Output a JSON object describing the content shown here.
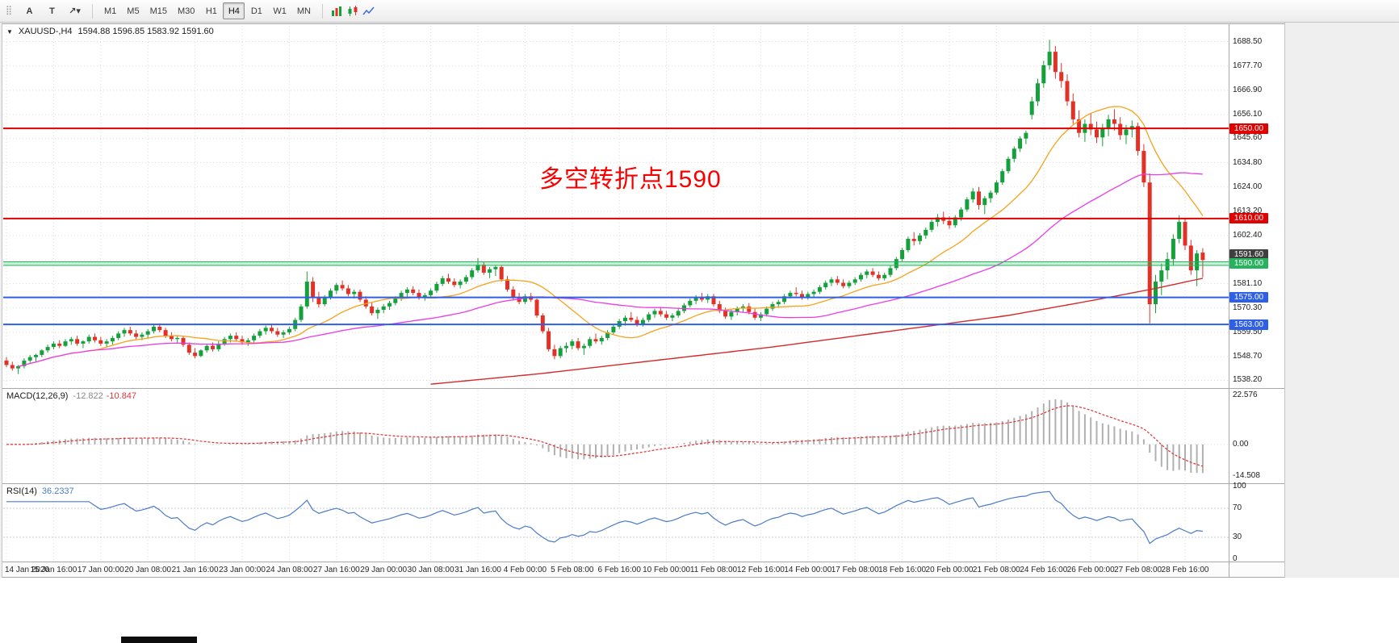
{
  "window": {
    "bg": "#efefef"
  },
  "toolbar": {
    "grip_glyph": "⣿",
    "left_buttons": [
      {
        "name": "a-tool-button",
        "label": "A"
      },
      {
        "name": "t-tool-button",
        "label": "T"
      },
      {
        "name": "crosshair-dropdown-button",
        "label": "↗▾"
      }
    ],
    "timeframes": [
      "M1",
      "M5",
      "M15",
      "M30",
      "H1",
      "H4",
      "D1",
      "W1",
      "MN"
    ],
    "active_timeframe": "H4",
    "right_icons": [
      {
        "name": "bar-chart-type-icon"
      },
      {
        "name": "candlestick-chart-type-icon"
      },
      {
        "name": "line-chart-type-icon"
      }
    ]
  },
  "chart": {
    "collapse_glyph": "▼",
    "symbol_label": "XAUUSD-,H4",
    "ohlc_text": "1594.88 1596.85 1583.92 1591.60",
    "annotation": {
      "text": "多空转折点1590",
      "color": "#fb0000"
    },
    "price_axis": [
      "1688.50",
      "1677.70",
      "1666.90",
      "1656.10",
      "1645.60",
      "1634.80",
      "1624.00",
      "1613.20",
      "1602.40",
      "1591.60",
      "1581.10",
      "1570.30",
      "1559.50",
      "1548.70",
      "1538.20"
    ],
    "levels": [
      {
        "price": 1650.0,
        "label": "1650.00",
        "color": "#e00000"
      },
      {
        "price": 1610.0,
        "label": "1610.00",
        "color": "#e00000"
      },
      {
        "price": 1590.0,
        "label": "1590.00",
        "color": "#27b35e",
        "style": "band"
      },
      {
        "price": 1575.0,
        "label": "1575.00",
        "color": "#2e5fe8"
      },
      {
        "price": 1563.0,
        "label": "1563.00",
        "color": "#2e5fe8"
      }
    ],
    "current_price": {
      "value": 1591.6,
      "label": "1591.60",
      "color": "#3f3f3f"
    }
  },
  "macd": {
    "name": "MACD(12,26,9)",
    "value_main": "-12.822",
    "value_signal": "-10.847",
    "axis_labels": [
      "22.576",
      "0.00",
      "-14.508"
    ]
  },
  "rsi": {
    "name": "RSI(14)",
    "value": "36.2337",
    "axis_labels": [
      "100",
      "70",
      "30",
      "0"
    ],
    "levels": [
      70,
      30
    ]
  },
  "colors": {
    "candle_up": "#15a03c",
    "candle_down": "#e23227",
    "ma_fast": "#f7a21b",
    "ma_medium": "#e93ce9",
    "ma_slow": "#d32a2a",
    "macd_hist": "#b0b0b0",
    "macd_signal": "#e03030",
    "rsi_line": "#4a7bc9"
  },
  "chart_data": {
    "type": "candlestick",
    "symbol": "XAUUSD",
    "timeframe": "H4",
    "grid_step": 8,
    "y_range": [
      1535.5,
      1695.5
    ],
    "ohlc_current": [
      1594.88,
      1596.85,
      1583.92,
      1591.6
    ],
    "indicators": {
      "macd": {
        "params": "12,26,9",
        "last_main": -12.822,
        "last_signal": -10.847,
        "axis": [
          22.576,
          0,
          -14.508
        ]
      },
      "rsi": {
        "period": 14,
        "last": 36.2337,
        "levels": [
          70,
          30
        ],
        "axis": [
          100,
          70,
          30,
          0
        ]
      }
    },
    "horizontal_levels": [
      1650.0,
      1610.0,
      1590.0,
      1575.0,
      1563.0
    ],
    "ma_slow_keypoints": [
      [
        72,
        1536.5
      ],
      [
        90,
        1541
      ],
      [
        110,
        1547
      ],
      [
        130,
        1553
      ],
      [
        150,
        1560
      ],
      [
        170,
        1567
      ],
      [
        185,
        1574
      ],
      [
        195,
        1579
      ],
      [
        203,
        1583.5
      ]
    ],
    "x_labels": [
      "14 Jan 2020",
      "15 Jan 16:00",
      "17 Jan 00:00",
      "20 Jan 08:00",
      "21 Jan 16:00",
      "23 Jan 00:00",
      "24 Jan 08:00",
      "27 Jan 16:00",
      "29 Jan 00:00",
      "30 Jan 08:00",
      "31 Jan 16:00",
      "4 Feb 00:00",
      "5 Feb 08:00",
      "6 Feb 16:00",
      "10 Feb 00:00",
      "11 Feb 08:00",
      "12 Feb 16:00",
      "14 Feb 00:00",
      "17 Feb 08:00",
      "18 Feb 16:00",
      "20 Feb 00:00",
      "21 Feb 08:00",
      "24 Feb 16:00",
      "26 Feb 00:00",
      "27 Feb 08:00",
      "28 Feb 16:00"
    ],
    "candles": [
      [
        1547,
        1548.5,
        1544,
        1545
      ],
      [
        1545,
        1546.5,
        1542.5,
        1543.5
      ],
      [
        1543.5,
        1545,
        1541,
        1544.5
      ],
      [
        1544.5,
        1548,
        1543.5,
        1547
      ],
      [
        1547,
        1549.5,
        1546,
        1548.5
      ],
      [
        1548.5,
        1550,
        1546.5,
        1549.5
      ],
      [
        1549.5,
        1552,
        1548.5,
        1551.5
      ],
      [
        1551.5,
        1554,
        1550.5,
        1553
      ],
      [
        1553,
        1555.5,
        1552,
        1554.5
      ],
      [
        1554.5,
        1556,
        1552.5,
        1553.5
      ],
      [
        1553.5,
        1556.5,
        1553,
        1555.5
      ],
      [
        1555.5,
        1557.5,
        1554,
        1556.5
      ],
      [
        1556.5,
        1558,
        1553.5,
        1554.5
      ],
      [
        1554.5,
        1556,
        1552.5,
        1555.5
      ],
      [
        1555.5,
        1558.5,
        1554.5,
        1557.5
      ],
      [
        1557.5,
        1559,
        1555,
        1556
      ],
      [
        1556,
        1557.5,
        1553.5,
        1554.5
      ],
      [
        1554.5,
        1556.5,
        1553,
        1555.5
      ],
      [
        1555.5,
        1558,
        1554,
        1557
      ],
      [
        1557,
        1560,
        1556,
        1559
      ],
      [
        1559,
        1561.5,
        1557.5,
        1560.5
      ],
      [
        1560.5,
        1562,
        1558,
        1559
      ],
      [
        1559,
        1560.5,
        1556.5,
        1557.5
      ],
      [
        1557.5,
        1559.5,
        1556,
        1558.5
      ],
      [
        1558.5,
        1561,
        1557,
        1560
      ],
      [
        1560,
        1563,
        1559,
        1562
      ],
      [
        1562,
        1563.5,
        1559.5,
        1560.5
      ],
      [
        1560.5,
        1561.5,
        1557,
        1558
      ],
      [
        1558,
        1559.5,
        1555.5,
        1556.5
      ],
      [
        1556.5,
        1558,
        1554.5,
        1557
      ],
      [
        1557,
        1558,
        1553,
        1554
      ],
      [
        1554,
        1555,
        1549.5,
        1550.5
      ],
      [
        1550.5,
        1552.5,
        1548,
        1549
      ],
      [
        1549,
        1552,
        1548.5,
        1551.5
      ],
      [
        1551.5,
        1554.5,
        1550.5,
        1553.5
      ],
      [
        1553.5,
        1555,
        1551,
        1552
      ],
      [
        1552,
        1555.5,
        1551,
        1554.5
      ],
      [
        1554.5,
        1557.5,
        1553.5,
        1556.5
      ],
      [
        1556.5,
        1559,
        1555,
        1558
      ],
      [
        1558,
        1559.5,
        1555.5,
        1556.5
      ],
      [
        1556.5,
        1558,
        1554,
        1555
      ],
      [
        1555,
        1557,
        1553.5,
        1556
      ],
      [
        1556,
        1559,
        1555,
        1558
      ],
      [
        1558,
        1561,
        1557,
        1560
      ],
      [
        1560,
        1562.5,
        1558.5,
        1561.5
      ],
      [
        1561.5,
        1563,
        1559,
        1560
      ],
      [
        1560,
        1561.5,
        1557.5,
        1558.5
      ],
      [
        1558.5,
        1560.5,
        1557,
        1559.5
      ],
      [
        1559.5,
        1562,
        1558.5,
        1561
      ],
      [
        1561,
        1566,
        1560,
        1565
      ],
      [
        1565,
        1572,
        1564,
        1571
      ],
      [
        1571,
        1586.5,
        1570,
        1582
      ],
      [
        1582,
        1584,
        1573,
        1575
      ],
      [
        1575,
        1577.5,
        1570.5,
        1572
      ],
      [
        1572,
        1576,
        1571,
        1575
      ],
      [
        1575,
        1579,
        1574,
        1578
      ],
      [
        1578,
        1581.5,
        1576.5,
        1580.5
      ],
      [
        1580.5,
        1582.5,
        1578,
        1579
      ],
      [
        1579,
        1580.5,
        1575.5,
        1576.5
      ],
      [
        1576.5,
        1578.5,
        1574.5,
        1577.5
      ],
      [
        1577.5,
        1578.5,
        1573,
        1574
      ],
      [
        1574,
        1575.5,
        1570,
        1571
      ],
      [
        1571,
        1572.5,
        1567,
        1568
      ],
      [
        1568,
        1570.5,
        1565.5,
        1569.5
      ],
      [
        1569.5,
        1572,
        1568,
        1571
      ],
      [
        1571,
        1573.5,
        1569.5,
        1572.5
      ],
      [
        1572.5,
        1575.5,
        1571.5,
        1574.5
      ],
      [
        1574.5,
        1578,
        1573.5,
        1577
      ],
      [
        1577,
        1579.5,
        1575,
        1578.5
      ],
      [
        1578.5,
        1580,
        1576,
        1577
      ],
      [
        1577,
        1578.5,
        1574,
        1575
      ],
      [
        1575,
        1577,
        1573.5,
        1576
      ],
      [
        1576,
        1579,
        1575,
        1578
      ],
      [
        1578,
        1582,
        1577,
        1581
      ],
      [
        1581,
        1584.5,
        1580,
        1583.5
      ],
      [
        1583.5,
        1585.5,
        1581,
        1582
      ],
      [
        1582,
        1583.5,
        1579.5,
        1580.5
      ],
      [
        1580.5,
        1583,
        1579,
        1582
      ],
      [
        1582,
        1585,
        1581,
        1584
      ],
      [
        1584,
        1588,
        1583,
        1587
      ],
      [
        1587,
        1592.5,
        1586,
        1589.5
      ],
      [
        1589.5,
        1591,
        1585,
        1586
      ],
      [
        1586,
        1588.5,
        1583.5,
        1587.5
      ],
      [
        1587.5,
        1589,
        1584.5,
        1588.5
      ],
      [
        1588.5,
        1589,
        1582,
        1583
      ],
      [
        1583,
        1584.5,
        1577.5,
        1578.5
      ],
      [
        1578.5,
        1580,
        1574,
        1575
      ],
      [
        1575,
        1577,
        1572,
        1573
      ],
      [
        1573,
        1576.5,
        1572,
        1575.5
      ],
      [
        1575.5,
        1577,
        1573,
        1574
      ],
      [
        1574,
        1574.5,
        1566,
        1567
      ],
      [
        1567,
        1568,
        1559,
        1560
      ],
      [
        1560,
        1561.5,
        1551,
        1552
      ],
      [
        1552,
        1554,
        1547.5,
        1549
      ],
      [
        1549,
        1553.5,
        1548,
        1552.5
      ],
      [
        1552.5,
        1555,
        1550.5,
        1553.5
      ],
      [
        1553.5,
        1556.5,
        1552,
        1555.5
      ],
      [
        1555.5,
        1557,
        1551.5,
        1552.5
      ],
      [
        1552.5,
        1554.5,
        1549.5,
        1553.5
      ],
      [
        1553.5,
        1557.5,
        1552.5,
        1556.5
      ],
      [
        1556.5,
        1559,
        1554.5,
        1555.5
      ],
      [
        1555.5,
        1558,
        1554,
        1557
      ],
      [
        1557,
        1560.5,
        1556,
        1559.5
      ],
      [
        1559.5,
        1563,
        1558.5,
        1562
      ],
      [
        1562,
        1565.5,
        1561,
        1564.5
      ],
      [
        1564.5,
        1567,
        1562.5,
        1566
      ],
      [
        1566,
        1568.5,
        1564,
        1565
      ],
      [
        1565,
        1566.5,
        1562,
        1563
      ],
      [
        1563,
        1566,
        1562,
        1565
      ],
      [
        1565,
        1568.5,
        1564,
        1567.5
      ],
      [
        1567.5,
        1570,
        1566,
        1569
      ],
      [
        1569,
        1570.5,
        1566.5,
        1567.5
      ],
      [
        1567.5,
        1569,
        1565,
        1566
      ],
      [
        1566,
        1568,
        1564.5,
        1567
      ],
      [
        1567,
        1570,
        1566,
        1569
      ],
      [
        1569,
        1572.5,
        1568,
        1571.5
      ],
      [
        1571.5,
        1574.5,
        1570.5,
        1573.5
      ],
      [
        1573.5,
        1576,
        1572,
        1575
      ],
      [
        1575,
        1577,
        1573,
        1574
      ],
      [
        1574,
        1576.5,
        1572.5,
        1575.5
      ],
      [
        1575.5,
        1576.5,
        1571,
        1572
      ],
      [
        1572,
        1573.5,
        1568,
        1569
      ],
      [
        1569,
        1570.5,
        1565.5,
        1566.5
      ],
      [
        1566.5,
        1569.5,
        1565,
        1568.5
      ],
      [
        1568.5,
        1571,
        1567,
        1570
      ],
      [
        1570,
        1572,
        1568.5,
        1571
      ],
      [
        1571,
        1572.5,
        1567.5,
        1568.5
      ],
      [
        1568.5,
        1570,
        1565,
        1566
      ],
      [
        1566,
        1568.5,
        1564.5,
        1567.5
      ],
      [
        1567.5,
        1571,
        1566.5,
        1570
      ],
      [
        1570,
        1573,
        1569,
        1572
      ],
      [
        1572,
        1574,
        1570.5,
        1573
      ],
      [
        1573,
        1576.5,
        1572,
        1575.5
      ],
      [
        1575.5,
        1578,
        1574.5,
        1577
      ],
      [
        1577,
        1579.5,
        1575.5,
        1576.5
      ],
      [
        1576.5,
        1578,
        1574,
        1575
      ],
      [
        1575,
        1577.5,
        1574,
        1576.5
      ],
      [
        1576.5,
        1578.5,
        1575,
        1577.5
      ],
      [
        1577.5,
        1580.5,
        1576.5,
        1579.5
      ],
      [
        1579.5,
        1582.5,
        1578.5,
        1581.5
      ],
      [
        1581.5,
        1584,
        1580,
        1583
      ],
      [
        1583,
        1584.5,
        1580.5,
        1581.5
      ],
      [
        1581.5,
        1583,
        1579,
        1580
      ],
      [
        1580,
        1582.5,
        1579,
        1581.5
      ],
      [
        1581.5,
        1584,
        1580.5,
        1583
      ],
      [
        1583,
        1586,
        1582,
        1585
      ],
      [
        1585,
        1587.5,
        1583.5,
        1586.5
      ],
      [
        1586.5,
        1588,
        1584,
        1585
      ],
      [
        1585,
        1586.5,
        1582.5,
        1583.5
      ],
      [
        1583.5,
        1586,
        1582.5,
        1585
      ],
      [
        1585,
        1589,
        1584,
        1588
      ],
      [
        1588,
        1593,
        1587,
        1592
      ],
      [
        1592,
        1597,
        1591,
        1596
      ],
      [
        1596,
        1602,
        1595,
        1601
      ],
      [
        1601,
        1604,
        1598,
        1600
      ],
      [
        1600,
        1603.5,
        1598.5,
        1602.5
      ],
      [
        1602.5,
        1606,
        1601,
        1605
      ],
      [
        1605,
        1609.5,
        1604,
        1608.5
      ],
      [
        1608.5,
        1612,
        1606.5,
        1610.5
      ],
      [
        1610.5,
        1613,
        1607.5,
        1609
      ],
      [
        1609,
        1611,
        1605.5,
        1607
      ],
      [
        1607,
        1611.5,
        1606,
        1610.5
      ],
      [
        1610.5,
        1615,
        1609,
        1614
      ],
      [
        1614,
        1619.5,
        1613,
        1618.5
      ],
      [
        1618.5,
        1623.5,
        1617,
        1622
      ],
      [
        1622,
        1624,
        1614,
        1616
      ],
      [
        1616,
        1620,
        1612,
        1619
      ],
      [
        1619,
        1622.5,
        1617,
        1621.5
      ],
      [
        1621.5,
        1627,
        1620.5,
        1626
      ],
      [
        1626,
        1632,
        1625,
        1631
      ],
      [
        1631,
        1637.5,
        1630,
        1636.5
      ],
      [
        1636.5,
        1642,
        1635,
        1641
      ],
      [
        1641,
        1646.5,
        1639.5,
        1645.5
      ],
      [
        1645.5,
        1649,
        1643,
        1648
      ],
      [
        1656,
        1664,
        1654,
        1662
      ],
      [
        1662,
        1672,
        1660,
        1670
      ],
      [
        1670,
        1680,
        1668,
        1678
      ],
      [
        1678,
        1689.3,
        1676,
        1684
      ],
      [
        1684,
        1686.5,
        1672,
        1675
      ],
      [
        1675,
        1679,
        1668,
        1671
      ],
      [
        1671,
        1674,
        1660,
        1662
      ],
      [
        1662,
        1665.5,
        1652,
        1654
      ],
      [
        1654,
        1658,
        1646,
        1648
      ],
      [
        1648,
        1654,
        1644,
        1652
      ],
      [
        1652,
        1656.5,
        1647,
        1649.5
      ],
      [
        1649.5,
        1653,
        1643.5,
        1646
      ],
      [
        1646,
        1652,
        1642,
        1650
      ],
      [
        1650,
        1656,
        1646.5,
        1654
      ],
      [
        1654,
        1658.5,
        1649,
        1652
      ],
      [
        1652,
        1655,
        1645,
        1647
      ],
      [
        1647,
        1651.5,
        1643,
        1649.5
      ],
      [
        1649.5,
        1653.5,
        1646,
        1651
      ],
      [
        1651,
        1652.5,
        1638,
        1640
      ],
      [
        1640,
        1643,
        1624,
        1626
      ],
      [
        1626,
        1630,
        1563.5,
        1572
      ],
      [
        1572,
        1585,
        1568,
        1582
      ],
      [
        1582,
        1590,
        1576,
        1587
      ],
      [
        1587,
        1595,
        1583,
        1592
      ],
      [
        1592,
        1603,
        1589,
        1601
      ],
      [
        1601,
        1611.5,
        1599,
        1608.5
      ],
      [
        1608.5,
        1610,
        1596,
        1598
      ],
      [
        1598,
        1600.5,
        1585,
        1587
      ],
      [
        1587,
        1596,
        1580,
        1594.5
      ],
      [
        1594.88,
        1596.85,
        1583.92,
        1591.6
      ]
    ]
  }
}
